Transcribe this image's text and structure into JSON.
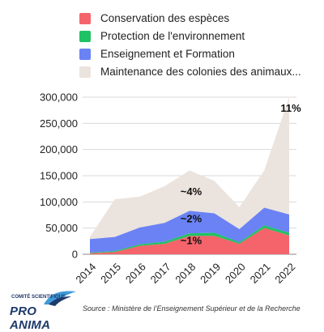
{
  "colors": {
    "conservation": "#f4646a",
    "protection": "#20c264",
    "enseignement": "#6a82f4",
    "maintenance": "#ebe3de"
  },
  "legend": [
    {
      "label": "Conservation des espèces",
      "color": "#f4646a"
    },
    {
      "label": "Protection de l'environnement",
      "color": "#20c264"
    },
    {
      "label": "Enseignement et Formation",
      "color": "#6a82f4"
    },
    {
      "label": "Maintenance des colonies des animaux...",
      "color": "#ebe3de"
    }
  ],
  "chart_data": {
    "type": "area",
    "stacked": true,
    "categories": [
      "2014",
      "2015",
      "2016",
      "2017",
      "2018",
      "2019",
      "2020",
      "2021",
      "2022"
    ],
    "series": [
      {
        "name": "Conservation des espèces",
        "values": [
          2000,
          4000,
          16000,
          20000,
          35000,
          35000,
          20000,
          50000,
          36000
        ]
      },
      {
        "name": "Protection de l'environnement",
        "values": [
          1000,
          2000,
          3000,
          4000,
          5000,
          6000,
          3000,
          5000,
          5000
        ]
      },
      {
        "name": "Enseignement et Formation",
        "values": [
          26000,
          27000,
          32000,
          36000,
          43000,
          37000,
          25000,
          34000,
          35000
        ]
      },
      {
        "name": "Maintenance des colonies des animaux...",
        "values": [
          4000,
          72000,
          59000,
          70000,
          77000,
          62000,
          42000,
          71000,
          224000
        ]
      }
    ],
    "ylim": [
      0,
      300000
    ],
    "yticks": [
      "0",
      "50,000",
      "100,000",
      "150,000",
      "200,000",
      "250,000",
      "300,000"
    ],
    "grid": true,
    "annotations": [
      {
        "text": "11%",
        "x": "2022",
        "y": 272000
      },
      {
        "text": "~4%",
        "x": "2018",
        "y": 113000
      },
      {
        "text": "~2%",
        "x": "2018",
        "y": 61000
      },
      {
        "text": "~1%",
        "x": "2018",
        "y": 19000
      }
    ]
  },
  "footer": {
    "logo_top": "COMITÉ SCIENTIFIQUE",
    "logo_main": "PRO ANIMA",
    "source": "Source : Ministère de l’Enseignement Supérieur et de la Recherche"
  }
}
